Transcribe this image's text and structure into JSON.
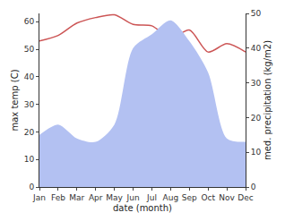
{
  "chart_data": {
    "type": "line",
    "xlabel": "date (month)",
    "ylabel": "max temp (C)",
    "y2label": "med. precipitation (kg/m2)",
    "categories": [
      "Jan",
      "Feb",
      "Mar",
      "Apr",
      "May",
      "Jun",
      "Jul",
      "Aug",
      "Sep",
      "Oct",
      "Nov",
      "Dec"
    ],
    "series": [
      {
        "name": "med. precipitation (kg/m2)",
        "type": "area",
        "axis": "y2",
        "color": "#b3c1f2",
        "values": [
          15,
          18,
          14,
          13,
          18,
          40,
          44,
          48,
          42,
          33,
          14,
          13
        ]
      },
      {
        "name": "max temp (C)",
        "type": "line",
        "color": "#cc5555",
        "values": [
          53,
          55,
          59.5,
          61.5,
          62.5,
          59,
          58.5,
          54,
          57,
          49,
          52,
          49
        ]
      }
    ],
    "ylim": [
      0,
      63
    ],
    "yticks": [
      0,
      10,
      20,
      30,
      40,
      50,
      60
    ],
    "y2lim": [
      0,
      50
    ],
    "y2ticks": [
      0,
      10,
      20,
      30,
      40,
      50
    ],
    "grid": false
  }
}
